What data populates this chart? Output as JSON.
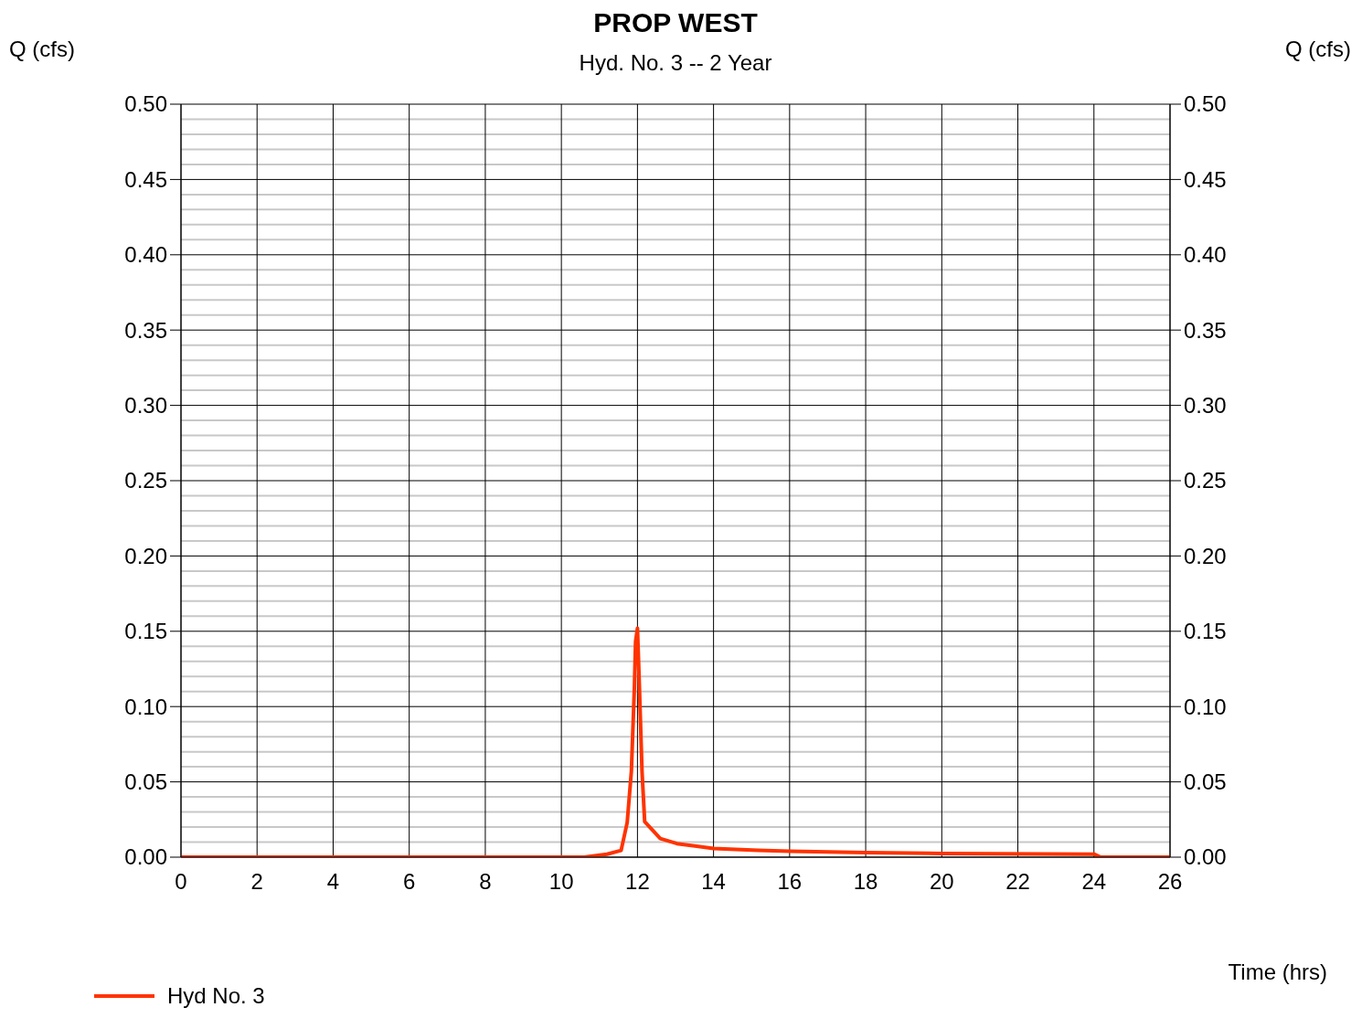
{
  "chart_data": {
    "type": "line",
    "title": "PROP WEST",
    "subtitle": "Hyd. No. 3 -- 2 Year",
    "xlabel": "Time (hrs)",
    "ylabel": "Q (cfs)",
    "y2label": "Q (cfs)",
    "xlim": [
      0,
      26
    ],
    "xticks": [
      0,
      2,
      4,
      6,
      8,
      10,
      12,
      14,
      16,
      18,
      20,
      22,
      24,
      26
    ],
    "ylim": [
      0,
      0.5
    ],
    "yticks": [
      {
        "value": 0,
        "label": "0.00"
      },
      {
        "value": 0.01,
        "label": null
      },
      {
        "value": 0.02,
        "label": null
      },
      {
        "value": 0.03,
        "label": null
      },
      {
        "value": 0.04,
        "label": null
      },
      {
        "value": 0.05,
        "label": "0.05"
      },
      {
        "value": 0.06,
        "label": null
      },
      {
        "value": 0.07,
        "label": null
      },
      {
        "value": 0.08,
        "label": null
      },
      {
        "value": 0.09,
        "label": null
      },
      {
        "value": 0.1,
        "label": "0.10"
      },
      {
        "value": 0.11,
        "label": null
      },
      {
        "value": 0.12,
        "label": null
      },
      {
        "value": 0.13,
        "label": null
      },
      {
        "value": 0.14,
        "label": null
      },
      {
        "value": 0.15,
        "label": "0.15"
      },
      {
        "value": 0.16,
        "label": null
      },
      {
        "value": 0.17,
        "label": null
      },
      {
        "value": 0.18,
        "label": null
      },
      {
        "value": 0.19,
        "label": null
      },
      {
        "value": 0.2,
        "label": "0.20"
      },
      {
        "value": 0.21,
        "label": null
      },
      {
        "value": 0.22,
        "label": null
      },
      {
        "value": 0.23,
        "label": null
      },
      {
        "value": 0.24,
        "label": null
      },
      {
        "value": 0.25,
        "label": "0.25"
      },
      {
        "value": 0.26,
        "label": null
      },
      {
        "value": 0.27,
        "label": null
      },
      {
        "value": 0.28,
        "label": null
      },
      {
        "value": 0.29,
        "label": null
      },
      {
        "value": 0.3,
        "label": "0.30"
      },
      {
        "value": 0.31,
        "label": null
      },
      {
        "value": 0.32,
        "label": null
      },
      {
        "value": 0.33,
        "label": null
      },
      {
        "value": 0.34,
        "label": null
      },
      {
        "value": 0.35,
        "label": "0.35"
      },
      {
        "value": 0.36,
        "label": null
      },
      {
        "value": 0.37,
        "label": null
      },
      {
        "value": 0.38,
        "label": null
      },
      {
        "value": 0.39,
        "label": null
      },
      {
        "value": 0.4,
        "label": "0.40"
      },
      {
        "value": 0.41,
        "label": null
      },
      {
        "value": 0.42,
        "label": null
      },
      {
        "value": 0.43,
        "label": null
      },
      {
        "value": 0.44,
        "label": null
      },
      {
        "value": 0.45,
        "label": "0.45"
      },
      {
        "value": 0.46,
        "label": null
      },
      {
        "value": 0.47,
        "label": null
      },
      {
        "value": 0.48,
        "label": null
      },
      {
        "value": 0.49,
        "label": null
      },
      {
        "value": 0.5,
        "label": "0.50"
      }
    ],
    "y2lim": [
      0,
      0.5
    ],
    "y2ticks": [
      {
        "value": 0,
        "label": "0.00"
      },
      {
        "value": 0.05,
        "label": "0.05"
      },
      {
        "value": 0.1,
        "label": "0.10"
      },
      {
        "value": 0.15,
        "label": "0.15"
      },
      {
        "value": 0.2,
        "label": "0.20"
      },
      {
        "value": 0.25,
        "label": "0.25"
      },
      {
        "value": 0.3,
        "label": "0.30"
      },
      {
        "value": 0.35,
        "label": "0.35"
      },
      {
        "value": 0.4,
        "label": "0.40"
      },
      {
        "value": 0.45,
        "label": "0.45"
      },
      {
        "value": 0.5,
        "label": "0.50"
      }
    ],
    "grid": true,
    "legend": "bottom left",
    "marker": "none",
    "line_style": "solid",
    "series": [
      {
        "name": "Hyd No. 3",
        "color": "#ff3300",
        "x": [
          0,
          2,
          4,
          6,
          8,
          10,
          10.6,
          11.2,
          11.57,
          11.73,
          11.84,
          11.92,
          11.95,
          12.0,
          12.04,
          12.12,
          12.19,
          12.6,
          13.04,
          14.0,
          15.17,
          16.0,
          18.0,
          20.0,
          24.0,
          24.18,
          26
        ],
        "values": [
          0,
          0,
          0,
          0,
          0,
          0,
          0,
          0.002,
          0.0045,
          0.023,
          0.057,
          0.113,
          0.143,
          0.152,
          0.122,
          0.057,
          0.0236,
          0.0124,
          0.009,
          0.0057,
          0.0045,
          0.004,
          0.003,
          0.0025,
          0.002,
          0,
          0
        ]
      }
    ]
  }
}
